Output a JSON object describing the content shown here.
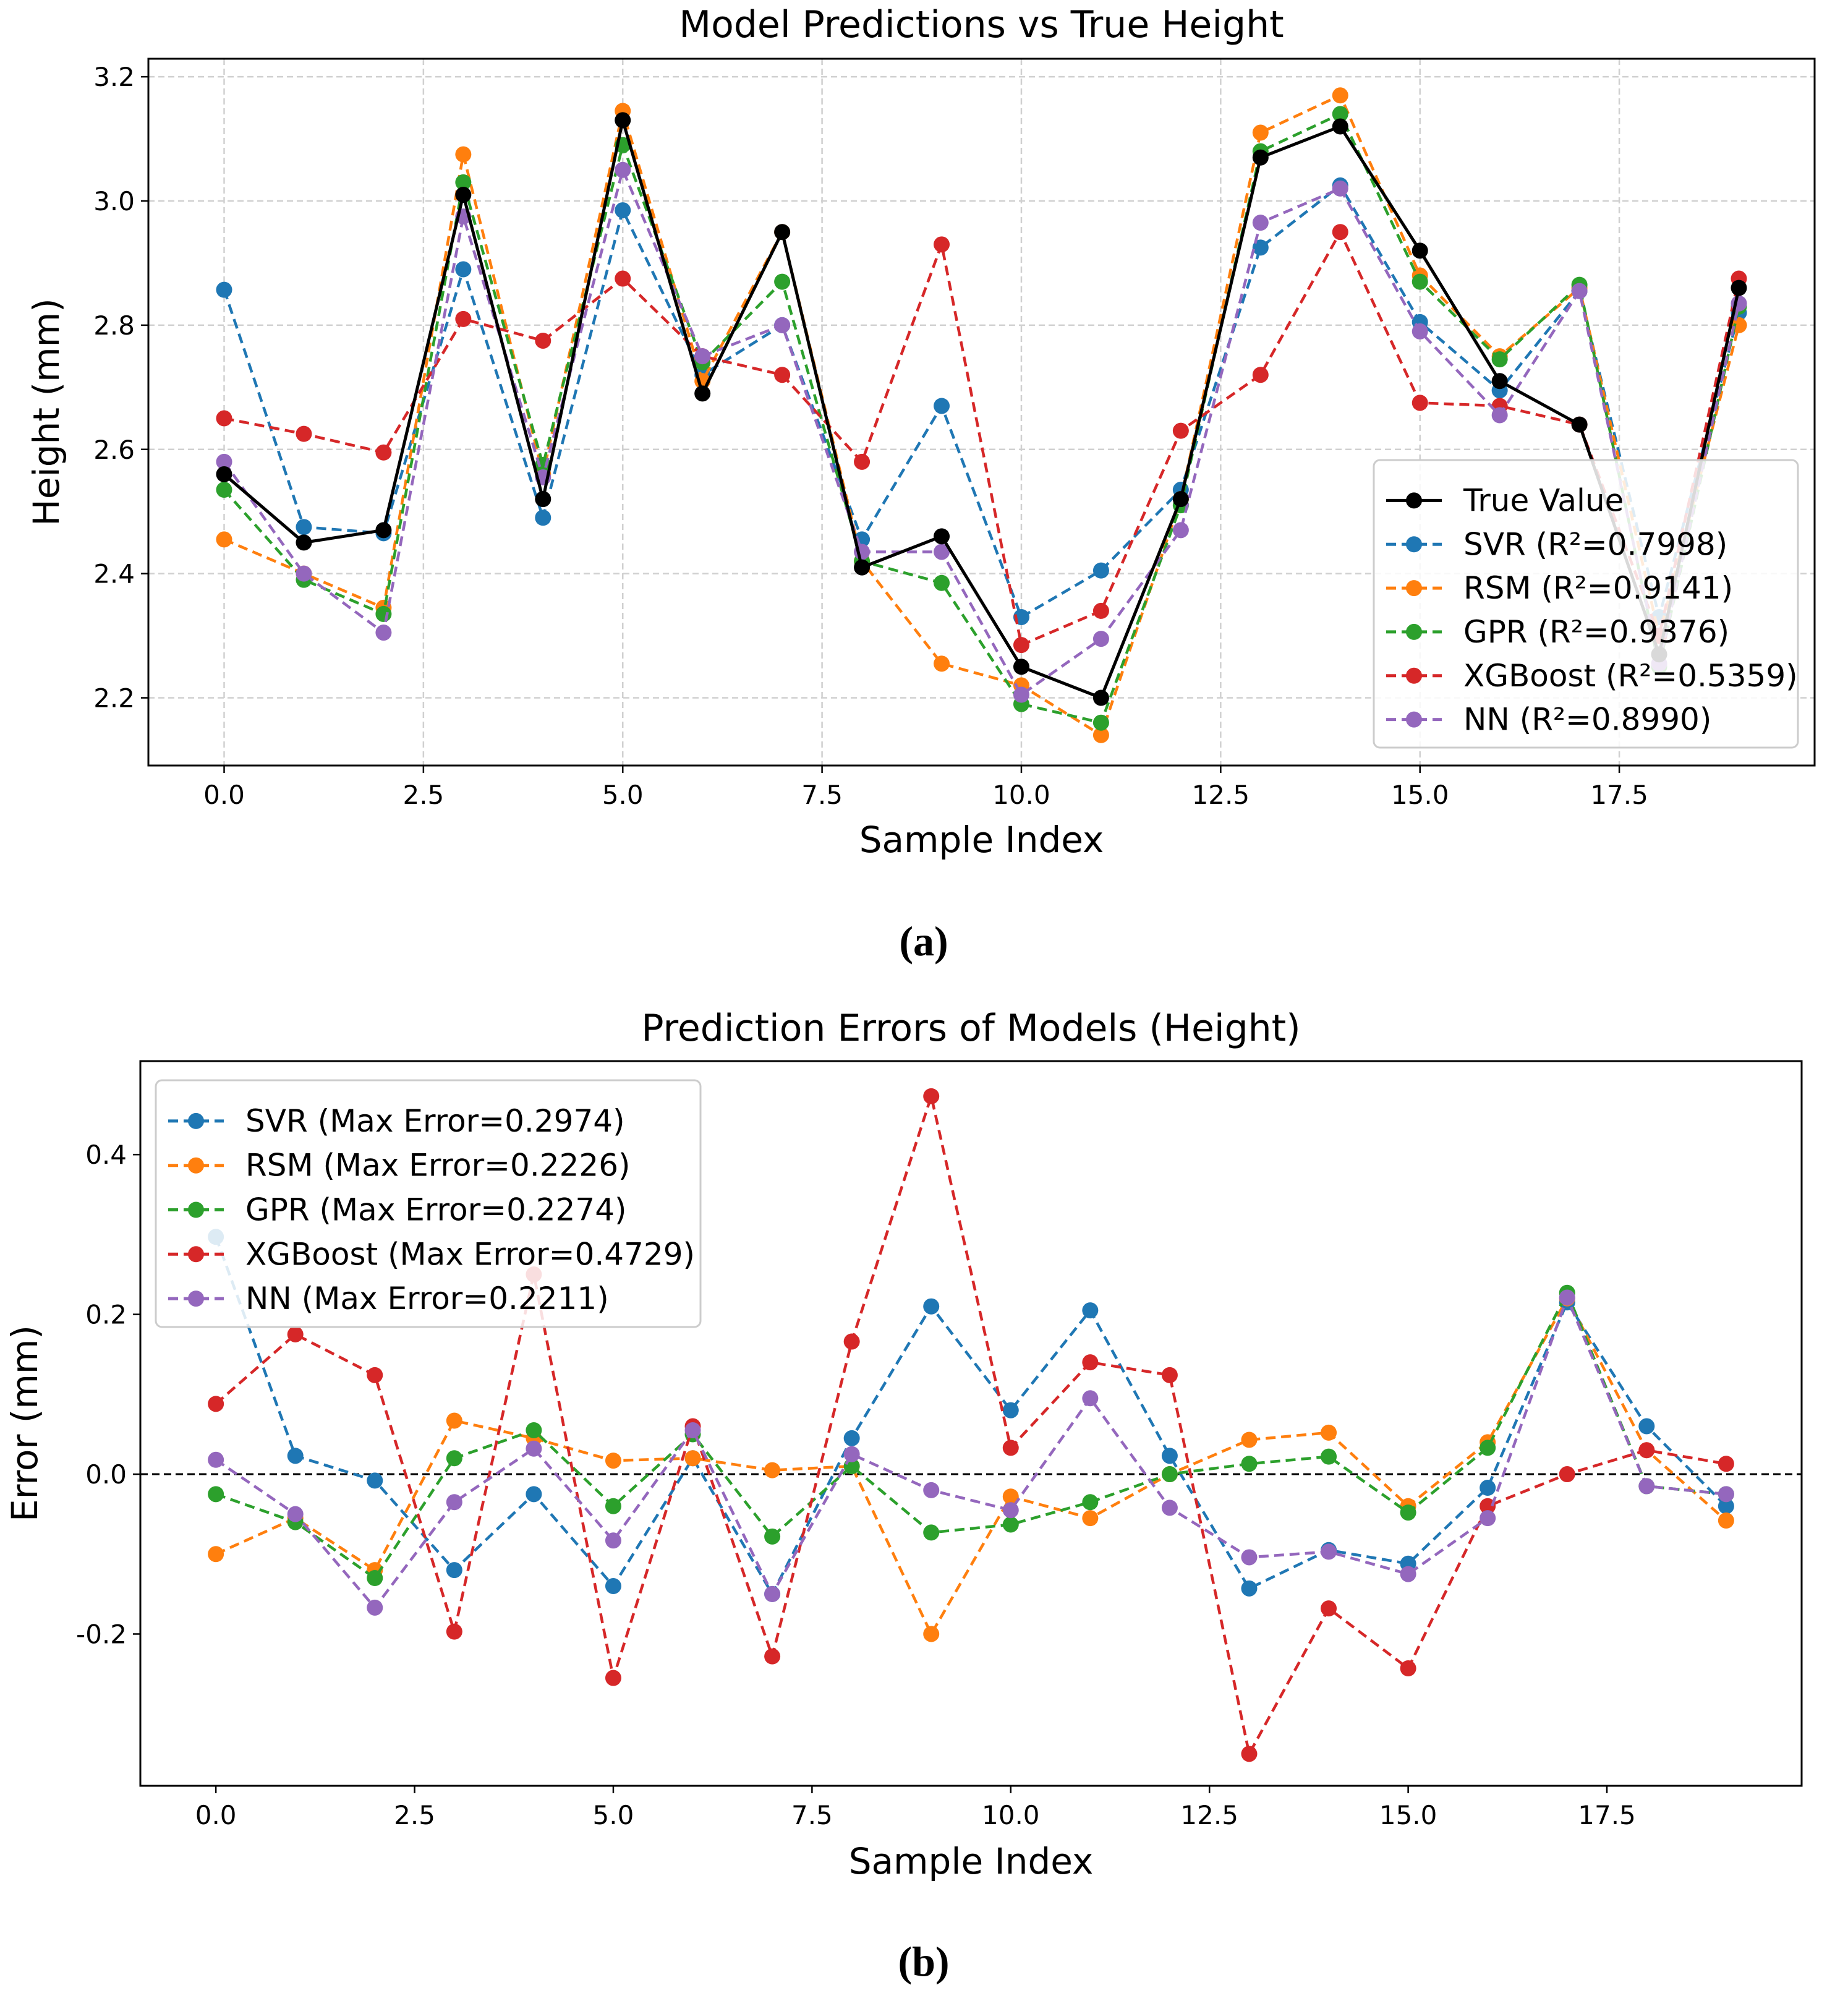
{
  "chart_data": [
    {
      "type": "line",
      "title": "Model Predictions vs True Height",
      "xlabel": "Sample Index",
      "ylabel": "Height (mm)",
      "caption": "(a)",
      "xlim": [
        -0.95,
        19.95
      ],
      "ylim": [
        2.091,
        3.229
      ],
      "xticks": [
        0,
        2.5,
        5,
        7.5,
        10,
        12.5,
        15,
        17.5
      ],
      "xtick_labels": [
        "0.0",
        "2.5",
        "5.0",
        "7.5",
        "10.0",
        "12.5",
        "15.0",
        "17.5"
      ],
      "yticks": [
        2.2,
        2.4,
        2.6,
        2.8,
        3.0,
        3.2
      ],
      "ytick_labels": [
        "2.2",
        "2.4",
        "2.6",
        "2.8",
        "3.0",
        "3.2"
      ],
      "grid": true,
      "legend_position": "lower-right",
      "x": [
        0,
        1,
        2,
        3,
        4,
        5,
        6,
        7,
        8,
        9,
        10,
        11,
        12,
        13,
        14,
        15,
        16,
        17,
        18,
        19
      ],
      "series": [
        {
          "name": "SVR (R²=0.7998)",
          "color": "#1f77b4",
          "dashed": true,
          "values": [
            2.857,
            2.475,
            2.465,
            2.89,
            2.49,
            2.985,
            2.72,
            2.8,
            2.455,
            2.67,
            2.33,
            2.405,
            2.535,
            2.925,
            3.025,
            2.805,
            2.695,
            2.855,
            2.33,
            2.82
          ]
        },
        {
          "name": "RSM (R²=0.9141)",
          "color": "#ff7f0e",
          "dashed": true,
          "values": [
            2.455,
            2.4,
            2.345,
            3.075,
            2.56,
            3.145,
            2.71,
            2.95,
            2.42,
            2.255,
            2.22,
            2.14,
            2.52,
            3.11,
            3.17,
            2.88,
            2.75,
            2.86,
            2.3,
            2.8
          ]
        },
        {
          "name": "GPR (R²=0.9376)",
          "color": "#2ca02c",
          "dashed": true,
          "values": [
            2.535,
            2.39,
            2.335,
            3.03,
            2.575,
            3.09,
            2.74,
            2.87,
            2.42,
            2.385,
            2.19,
            2.16,
            2.51,
            3.08,
            3.14,
            2.87,
            2.745,
            2.865,
            2.25,
            2.83
          ]
        },
        {
          "name": "XGBoost (R²=0.5359)",
          "color": "#d62728",
          "dashed": true,
          "values": [
            2.65,
            2.625,
            2.595,
            2.81,
            2.775,
            2.875,
            2.75,
            2.72,
            2.58,
            2.93,
            2.285,
            2.34,
            2.63,
            2.72,
            2.95,
            2.675,
            2.67,
            2.64,
            2.3,
            2.875
          ]
        },
        {
          "name": "NN (R²=0.8990)",
          "color": "#9467bd",
          "dashed": true,
          "values": [
            2.58,
            2.4,
            2.305,
            2.975,
            2.555,
            3.05,
            2.75,
            2.8,
            2.435,
            2.435,
            2.205,
            2.295,
            2.47,
            2.965,
            3.02,
            2.79,
            2.655,
            2.855,
            2.255,
            2.835
          ]
        },
        {
          "name": "True Value",
          "color": "#000000",
          "dashed": false,
          "values": [
            2.56,
            2.45,
            2.47,
            3.01,
            2.52,
            3.13,
            2.69,
            2.95,
            2.41,
            2.46,
            2.25,
            2.2,
            2.52,
            3.07,
            3.12,
            2.92,
            2.71,
            2.64,
            2.27,
            2.86
          ]
        }
      ],
      "legend_order": [
        5,
        0,
        1,
        2,
        3,
        4
      ]
    },
    {
      "type": "line",
      "title": "Prediction Errors of Models (Height)",
      "xlabel": "Sample Index",
      "ylabel": "Error (mm)",
      "caption": "(b)",
      "xlim": [
        -0.95,
        19.95
      ],
      "ylim": [
        -0.39,
        0.517
      ],
      "xticks": [
        0,
        2.5,
        5,
        7.5,
        10,
        12.5,
        15,
        17.5
      ],
      "xtick_labels": [
        "0.0",
        "2.5",
        "5.0",
        "7.5",
        "10.0",
        "12.5",
        "15.0",
        "17.5"
      ],
      "yticks": [
        -0.2,
        0.0,
        0.2,
        0.4
      ],
      "ytick_labels": [
        "-0.2",
        "0.0",
        "0.2",
        "0.4"
      ],
      "grid": false,
      "reference_line": 0,
      "legend_position": "upper-left",
      "x": [
        0,
        1,
        2,
        3,
        4,
        5,
        6,
        7,
        8,
        9,
        10,
        11,
        12,
        13,
        14,
        15,
        16,
        17,
        18,
        19
      ],
      "series": [
        {
          "name": "SVR (Max Error=0.2974)",
          "color": "#1f77b4",
          "dashed": true,
          "values": [
            0.297,
            0.023,
            -0.008,
            -0.12,
            -0.025,
            -0.14,
            0.02,
            -0.15,
            0.045,
            0.21,
            0.08,
            0.205,
            0.023,
            -0.143,
            -0.095,
            -0.112,
            -0.017,
            0.215,
            0.06,
            -0.04
          ]
        },
        {
          "name": "RSM (Max Error=0.2226)",
          "color": "#ff7f0e",
          "dashed": true,
          "values": [
            -0.1,
            -0.055,
            -0.12,
            0.067,
            0.045,
            0.017,
            0.02,
            0.005,
            0.01,
            -0.2,
            -0.028,
            -0.055,
            0.0,
            0.043,
            0.052,
            -0.04,
            0.04,
            0.22,
            0.03,
            -0.058
          ]
        },
        {
          "name": "GPR (Max Error=0.2274)",
          "color": "#2ca02c",
          "dashed": true,
          "values": [
            -0.025,
            -0.06,
            -0.13,
            0.02,
            0.055,
            -0.04,
            0.05,
            -0.078,
            0.01,
            -0.073,
            -0.063,
            -0.035,
            0.0,
            0.013,
            0.022,
            -0.048,
            0.033,
            0.227,
            -0.015,
            -0.025
          ]
        },
        {
          "name": "XGBoost (Max Error=0.4729)",
          "color": "#d62728",
          "dashed": true,
          "values": [
            0.088,
            0.175,
            0.124,
            -0.197,
            0.25,
            -0.255,
            0.06,
            -0.228,
            0.166,
            0.473,
            0.033,
            0.14,
            0.124,
            -0.35,
            -0.168,
            -0.243,
            -0.04,
            0.0,
            0.03,
            0.013
          ]
        },
        {
          "name": "NN (Max Error=0.2211)",
          "color": "#9467bd",
          "dashed": true,
          "values": [
            0.018,
            -0.05,
            -0.167,
            -0.035,
            0.032,
            -0.083,
            0.055,
            -0.15,
            0.025,
            -0.02,
            -0.045,
            0.095,
            -0.042,
            -0.104,
            -0.097,
            -0.125,
            -0.055,
            0.221,
            -0.015,
            -0.025
          ]
        }
      ],
      "legend_order": [
        0,
        1,
        2,
        3,
        4
      ]
    }
  ]
}
